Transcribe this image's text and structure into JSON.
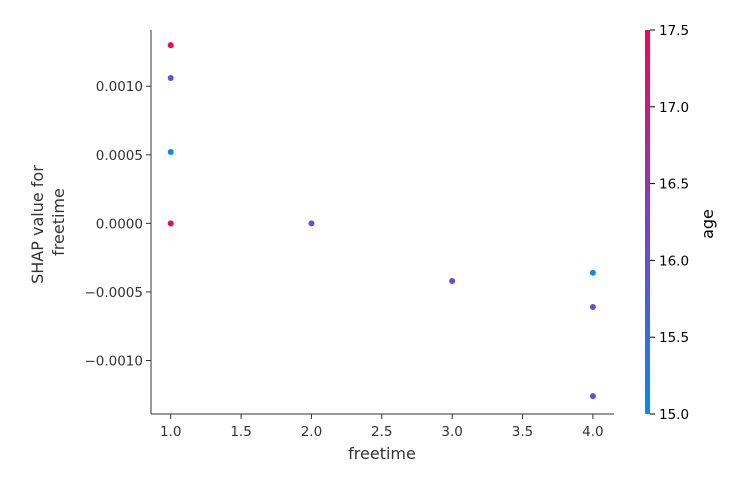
{
  "chart_data": {
    "type": "scatter",
    "title": "",
    "xlabel": "freetime",
    "ylabel_lines": [
      "SHAP value for",
      "freetime"
    ],
    "xlim": [
      0.86,
      4.15
    ],
    "ylim": [
      -0.00139,
      0.00141
    ],
    "xticks": [
      1.0,
      1.5,
      2.0,
      2.5,
      3.0,
      3.5,
      4.0
    ],
    "xtick_labels": [
      "1.0",
      "1.5",
      "2.0",
      "2.5",
      "3.0",
      "3.5",
      "4.0"
    ],
    "yticks": [
      0.001,
      0.0005,
      0.0,
      -0.0005,
      -0.001
    ],
    "ytick_labels": [
      "0.0010",
      "0.0005",
      "0.0000",
      "−0.0005",
      "−0.0010"
    ],
    "grid": false,
    "points": [
      {
        "x": 1.0,
        "y": 0.0013,
        "age": 17.5
      },
      {
        "x": 1.0,
        "y": 0.00106,
        "age": 16.0
      },
      {
        "x": 1.0,
        "y": 0.00052,
        "age": 15.0
      },
      {
        "x": 1.0,
        "y": 0.0,
        "age": 17.5
      },
      {
        "x": 2.0,
        "y": 0.0,
        "age": 16.0
      },
      {
        "x": 3.0,
        "y": -0.00042,
        "age": 16.0
      },
      {
        "x": 4.0,
        "y": -0.00036,
        "age": 15.0
      },
      {
        "x": 4.0,
        "y": -0.00061,
        "age": 16.0
      },
      {
        "x": 4.0,
        "y": -0.00126,
        "age": 16.0
      }
    ],
    "colorbar": {
      "label": "age",
      "min": 15.0,
      "max": 17.5,
      "ticks": [
        15.0,
        15.5,
        16.0,
        16.5,
        17.0,
        17.5
      ],
      "tick_labels": [
        "15.0",
        "15.5",
        "16.0",
        "16.5",
        "17.0",
        "17.5"
      ],
      "colormap": [
        "#008bfb",
        "#7b3fd7",
        "#ff0051"
      ]
    }
  }
}
